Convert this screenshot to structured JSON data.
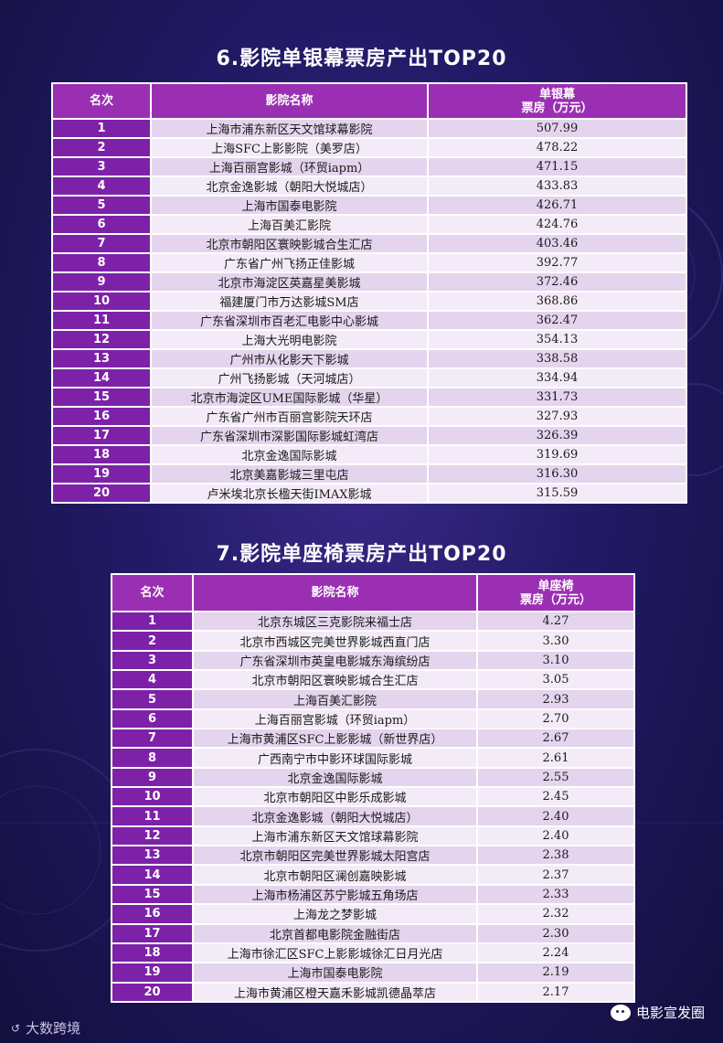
{
  "section1": {
    "title": "6.影院单银幕票房产出TOP20",
    "headers": {
      "rank": "名次",
      "name": "影院名称",
      "value_line1": "单银幕",
      "value_line2": "票房（万元）"
    },
    "rows": [
      {
        "rank": "1",
        "name": "上海市浦东新区天文馆球幕影院",
        "value": "507.99"
      },
      {
        "rank": "2",
        "name": "上海SFC上影影院（美罗店）",
        "value": "478.22"
      },
      {
        "rank": "3",
        "name": "上海百丽宫影城（环贸iapm）",
        "value": "471.15"
      },
      {
        "rank": "4",
        "name": "北京金逸影城（朝阳大悦城店）",
        "value": "433.83"
      },
      {
        "rank": "5",
        "name": "上海市国泰电影院",
        "value": "426.71"
      },
      {
        "rank": "6",
        "name": "上海百美汇影院",
        "value": "424.76"
      },
      {
        "rank": "7",
        "name": "北京市朝阳区寰映影城合生汇店",
        "value": "403.46"
      },
      {
        "rank": "8",
        "name": "广东省广州飞扬正佳影城",
        "value": "392.77"
      },
      {
        "rank": "9",
        "name": "北京市海淀区英嘉星美影城",
        "value": "372.46"
      },
      {
        "rank": "10",
        "name": "福建厦门市万达影城SM店",
        "value": "368.86"
      },
      {
        "rank": "11",
        "name": "广东省深圳市百老汇电影中心影城",
        "value": "362.47"
      },
      {
        "rank": "12",
        "name": "上海大光明电影院",
        "value": "354.13"
      },
      {
        "rank": "13",
        "name": "广州市从化影天下影城",
        "value": "338.58"
      },
      {
        "rank": "14",
        "name": "广州飞扬影城（天河城店）",
        "value": "334.94"
      },
      {
        "rank": "15",
        "name": "北京市海淀区UME国际影城（华星）",
        "value": "331.73"
      },
      {
        "rank": "16",
        "name": "广东省广州市百丽宫影院天环店",
        "value": "327.93"
      },
      {
        "rank": "17",
        "name": "广东省深圳市深影国际影城虹湾店",
        "value": "326.39"
      },
      {
        "rank": "18",
        "name": "北京金逸国际影城",
        "value": "319.69"
      },
      {
        "rank": "19",
        "name": "北京美嘉影城三里屯店",
        "value": "316.30"
      },
      {
        "rank": "20",
        "name": "卢米埃北京长楹天街IMAX影城",
        "value": "315.59"
      }
    ]
  },
  "section2": {
    "title": "7.影院单座椅票房产出TOP20",
    "headers": {
      "rank": "名次",
      "name": "影院名称",
      "value_line1": "单座椅",
      "value_line2": "票房（万元）"
    },
    "rows": [
      {
        "rank": "1",
        "name": "北京东城区三克影院来福士店",
        "value": "4.27"
      },
      {
        "rank": "2",
        "name": "北京市西城区完美世界影城西直门店",
        "value": "3.30"
      },
      {
        "rank": "3",
        "name": "广东省深圳市英皇电影城东海缤纷店",
        "value": "3.10"
      },
      {
        "rank": "4",
        "name": "北京市朝阳区寰映影城合生汇店",
        "value": "3.05"
      },
      {
        "rank": "5",
        "name": "上海百美汇影院",
        "value": "2.93"
      },
      {
        "rank": "6",
        "name": "上海百丽宫影城（环贸iapm）",
        "value": "2.70"
      },
      {
        "rank": "7",
        "name": "上海市黄浦区SFC上影影城（新世界店）",
        "value": "2.67"
      },
      {
        "rank": "8",
        "name": "广西南宁市中影环球国际影城",
        "value": "2.61"
      },
      {
        "rank": "9",
        "name": "北京金逸国际影城",
        "value": "2.55"
      },
      {
        "rank": "10",
        "name": "北京市朝阳区中影乐成影城",
        "value": "2.45"
      },
      {
        "rank": "11",
        "name": "北京金逸影城（朝阳大悦城店）",
        "value": "2.40"
      },
      {
        "rank": "12",
        "name": "上海市浦东新区天文馆球幕影院",
        "value": "2.40"
      },
      {
        "rank": "13",
        "name": "北京市朝阳区完美世界影城太阳宫店",
        "value": "2.38"
      },
      {
        "rank": "14",
        "name": "北京市朝阳区澜创嘉映影城",
        "value": "2.37"
      },
      {
        "rank": "15",
        "name": "上海市杨浦区苏宁影城五角场店",
        "value": "2.33"
      },
      {
        "rank": "16",
        "name": "上海龙之梦影城",
        "value": "2.32"
      },
      {
        "rank": "17",
        "name": "北京首都电影院金融街店",
        "value": "2.30"
      },
      {
        "rank": "18",
        "name": "上海市徐汇区SFC上影影城徐汇日月光店",
        "value": "2.24"
      },
      {
        "rank": "19",
        "name": "上海市国泰电影院",
        "value": "2.19"
      },
      {
        "rank": "20",
        "name": "上海市黄浦区橙天嘉禾影城凯德晶萃店",
        "value": "2.17"
      }
    ]
  },
  "footer": {
    "left_logo": "大数跨境",
    "right_label": "电影宣发圈"
  }
}
